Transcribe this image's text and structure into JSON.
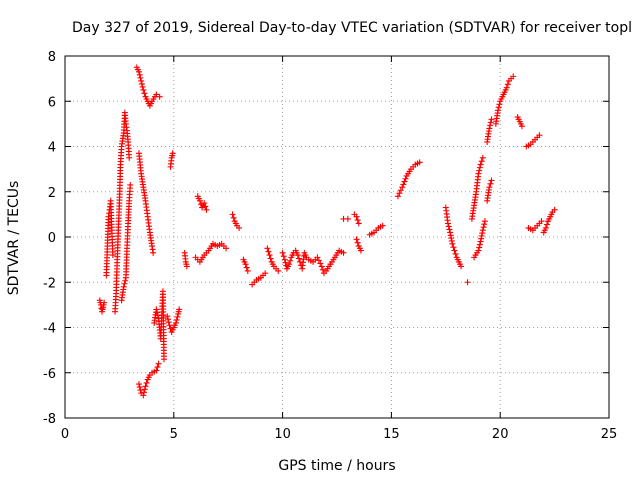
{
  "chart_data": {
    "type": "scatter",
    "title": "Day 327 of 2019, Sidereal Day-to-day VTEC variation (SDTVAR) for receiver topl",
    "xlabel": "GPS time / hours",
    "ylabel": "SDTVAR / TECUs",
    "xlim": [
      0,
      25
    ],
    "ylim": [
      -8,
      8
    ],
    "xticks": [
      0,
      5,
      10,
      15,
      20,
      25
    ],
    "yticks": [
      -8,
      -6,
      -4,
      -2,
      0,
      2,
      4,
      6,
      8
    ],
    "grid": true,
    "marker": "+",
    "color": "#ff0000",
    "series": [
      {
        "name": "SDTVAR",
        "segments": [
          [
            [
              1.6,
              -2.8
            ],
            [
              1.65,
              -3.0
            ],
            [
              1.7,
              -3.3
            ],
            [
              1.75,
              -3.1
            ],
            [
              1.8,
              -2.9
            ]
          ],
          [
            [
              1.9,
              -1.7
            ],
            [
              1.95,
              -0.4
            ],
            [
              2.0,
              0.9
            ],
            [
              2.05,
              1.2
            ],
            [
              2.1,
              1.6
            ],
            [
              2.15,
              0.3
            ],
            [
              2.2,
              -0.8
            ]
          ],
          [
            [
              2.3,
              -3.3
            ],
            [
              2.35,
              -2.5
            ],
            [
              2.4,
              -1.0
            ],
            [
              2.45,
              0.3
            ],
            [
              2.5,
              1.5
            ],
            [
              2.55,
              3.2
            ],
            [
              2.6,
              4.0
            ],
            [
              2.7,
              4.6
            ],
            [
              2.75,
              5.5
            ],
            [
              2.8,
              5.0
            ],
            [
              2.85,
              4.7
            ],
            [
              2.9,
              4.2
            ],
            [
              2.95,
              3.5
            ]
          ],
          [
            [
              2.6,
              -2.8
            ],
            [
              2.7,
              -2.2
            ],
            [
              2.8,
              -1.8
            ],
            [
              2.85,
              -0.5
            ],
            [
              2.9,
              0.6
            ],
            [
              2.95,
              1.6
            ],
            [
              3.0,
              2.3
            ]
          ],
          [
            [
              3.3,
              7.5
            ],
            [
              3.4,
              7.3
            ],
            [
              3.5,
              6.9
            ],
            [
              3.6,
              6.5
            ],
            [
              3.7,
              6.2
            ],
            [
              3.8,
              6.0
            ],
            [
              3.9,
              5.8
            ],
            [
              4.0,
              6.0
            ],
            [
              4.2,
              6.3
            ],
            [
              4.35,
              6.2
            ]
          ],
          [
            [
              3.4,
              -6.5
            ],
            [
              3.5,
              -6.9
            ],
            [
              3.6,
              -7.0
            ],
            [
              3.7,
              -6.6
            ],
            [
              3.8,
              -6.3
            ],
            [
              3.9,
              -6.1
            ],
            [
              4.0,
              -6.0
            ],
            [
              4.2,
              -5.9
            ],
            [
              4.3,
              -5.6
            ]
          ],
          [
            [
              3.4,
              3.7
            ],
            [
              3.5,
              2.8
            ],
            [
              3.6,
              2.2
            ],
            [
              3.7,
              1.6
            ],
            [
              3.8,
              0.9
            ],
            [
              3.9,
              0.2
            ],
            [
              4.0,
              -0.4
            ],
            [
              4.05,
              -0.7
            ]
          ],
          [
            [
              4.1,
              -3.8
            ],
            [
              4.2,
              -3.2
            ],
            [
              4.3,
              -3.6
            ],
            [
              4.4,
              -4.5
            ],
            [
              4.5,
              -2.4
            ],
            [
              4.55,
              -5.4
            ]
          ],
          [
            [
              4.7,
              -3.5
            ],
            [
              4.8,
              -3.9
            ],
            [
              4.9,
              -4.2
            ],
            [
              5.0,
              -4.0
            ],
            [
              5.1,
              -3.8
            ],
            [
              5.2,
              -3.4
            ],
            [
              5.25,
              -3.2
            ]
          ],
          [
            [
              4.85,
              3.1
            ],
            [
              4.9,
              3.5
            ],
            [
              4.95,
              3.7
            ]
          ],
          [
            [
              5.5,
              -0.7
            ],
            [
              5.55,
              -1.1
            ],
            [
              5.6,
              -1.3
            ]
          ],
          [
            [
              6.0,
              -0.9
            ],
            [
              6.2,
              -1.1
            ],
            [
              6.4,
              -0.8
            ],
            [
              6.6,
              -0.6
            ],
            [
              6.8,
              -0.3
            ],
            [
              7.0,
              -0.4
            ],
            [
              7.2,
              -0.3
            ],
            [
              7.4,
              -0.5
            ]
          ],
          [
            [
              6.1,
              1.8
            ],
            [
              6.2,
              1.6
            ],
            [
              6.3,
              1.3
            ],
            [
              6.4,
              1.5
            ],
            [
              6.5,
              1.2
            ]
          ],
          [
            [
              7.7,
              1.0
            ],
            [
              7.8,
              0.7
            ],
            [
              7.9,
              0.5
            ],
            [
              8.0,
              0.4
            ]
          ],
          [
            [
              8.2,
              -1.0
            ],
            [
              8.3,
              -1.2
            ],
            [
              8.4,
              -1.5
            ]
          ],
          [
            [
              8.6,
              -2.1
            ],
            [
              8.8,
              -1.9
            ],
            [
              9.0,
              -1.8
            ],
            [
              9.2,
              -1.6
            ]
          ],
          [
            [
              9.3,
              -0.5
            ],
            [
              9.4,
              -0.8
            ],
            [
              9.5,
              -1.1
            ],
            [
              9.6,
              -1.3
            ],
            [
              9.7,
              -1.4
            ],
            [
              9.8,
              -1.5
            ]
          ],
          [
            [
              10.0,
              -0.7
            ],
            [
              10.1,
              -1.0
            ],
            [
              10.2,
              -1.4
            ],
            [
              10.3,
              -1.2
            ],
            [
              10.4,
              -0.9
            ],
            [
              10.5,
              -0.7
            ],
            [
              10.6,
              -0.6
            ],
            [
              10.7,
              -0.8
            ],
            [
              10.8,
              -1.1
            ],
            [
              10.9,
              -1.4
            ],
            [
              11.0,
              -0.7
            ],
            [
              11.1,
              -0.9
            ],
            [
              11.2,
              -1.0
            ],
            [
              11.4,
              -1.1
            ],
            [
              11.6,
              -0.9
            ],
            [
              11.8,
              -1.3
            ],
            [
              11.9,
              -1.6
            ],
            [
              12.0,
              -1.5
            ],
            [
              12.2,
              -1.2
            ],
            [
              12.4,
              -0.9
            ],
            [
              12.6,
              -0.6
            ],
            [
              12.8,
              -0.7
            ]
          ],
          [
            [
              12.8,
              0.8
            ],
            [
              13.0,
              0.8
            ]
          ],
          [
            [
              13.3,
              1.0
            ],
            [
              13.4,
              0.9
            ],
            [
              13.5,
              0.6
            ]
          ],
          [
            [
              13.4,
              -0.1
            ],
            [
              13.5,
              -0.4
            ],
            [
              13.6,
              -0.6
            ]
          ],
          [
            [
              14.0,
              0.1
            ],
            [
              14.2,
              0.2
            ],
            [
              14.4,
              0.4
            ],
            [
              14.6,
              0.5
            ]
          ],
          [
            [
              15.3,
              1.8
            ],
            [
              15.5,
              2.2
            ],
            [
              15.7,
              2.7
            ],
            [
              15.9,
              3.0
            ],
            [
              16.1,
              3.2
            ],
            [
              16.3,
              3.3
            ]
          ],
          [
            [
              17.5,
              1.3
            ],
            [
              17.6,
              0.6
            ],
            [
              17.7,
              0.2
            ],
            [
              17.8,
              -0.3
            ],
            [
              17.9,
              -0.6
            ],
            [
              18.0,
              -0.9
            ],
            [
              18.1,
              -1.1
            ],
            [
              18.2,
              -1.3
            ]
          ],
          [
            [
              18.5,
              -2.0
            ]
          ],
          [
            [
              18.7,
              0.8
            ],
            [
              18.8,
              1.4
            ],
            [
              18.9,
              2.0
            ],
            [
              19.0,
              2.8
            ],
            [
              19.1,
              3.2
            ],
            [
              19.2,
              3.5
            ]
          ],
          [
            [
              18.8,
              -0.9
            ],
            [
              19.0,
              -0.6
            ],
            [
              19.1,
              -0.2
            ],
            [
              19.2,
              0.3
            ],
            [
              19.3,
              0.7
            ]
          ],
          [
            [
              19.4,
              1.6
            ],
            [
              19.5,
              2.2
            ],
            [
              19.6,
              2.5
            ]
          ],
          [
            [
              19.4,
              4.2
            ],
            [
              19.5,
              4.8
            ],
            [
              19.6,
              5.2
            ]
          ],
          [
            [
              19.8,
              5.0
            ],
            [
              19.9,
              5.6
            ],
            [
              20.0,
              6.0
            ],
            [
              20.1,
              6.2
            ],
            [
              20.2,
              6.4
            ],
            [
              20.3,
              6.6
            ],
            [
              20.4,
              6.9
            ],
            [
              20.5,
              7.0
            ],
            [
              20.6,
              7.1
            ]
          ],
          [
            [
              20.8,
              5.3
            ],
            [
              20.9,
              5.1
            ],
            [
              21.0,
              4.9
            ]
          ],
          [
            [
              21.2,
              4.0
            ],
            [
              21.4,
              4.1
            ],
            [
              21.6,
              4.3
            ],
            [
              21.8,
              4.5
            ]
          ],
          [
            [
              21.3,
              0.4
            ],
            [
              21.5,
              0.3
            ],
            [
              21.7,
              0.5
            ],
            [
              21.9,
              0.7
            ]
          ],
          [
            [
              22.0,
              0.2
            ],
            [
              22.1,
              0.4
            ],
            [
              22.2,
              0.7
            ],
            [
              22.3,
              0.9
            ],
            [
              22.4,
              1.1
            ],
            [
              22.5,
              1.2
            ]
          ]
        ]
      }
    ]
  }
}
